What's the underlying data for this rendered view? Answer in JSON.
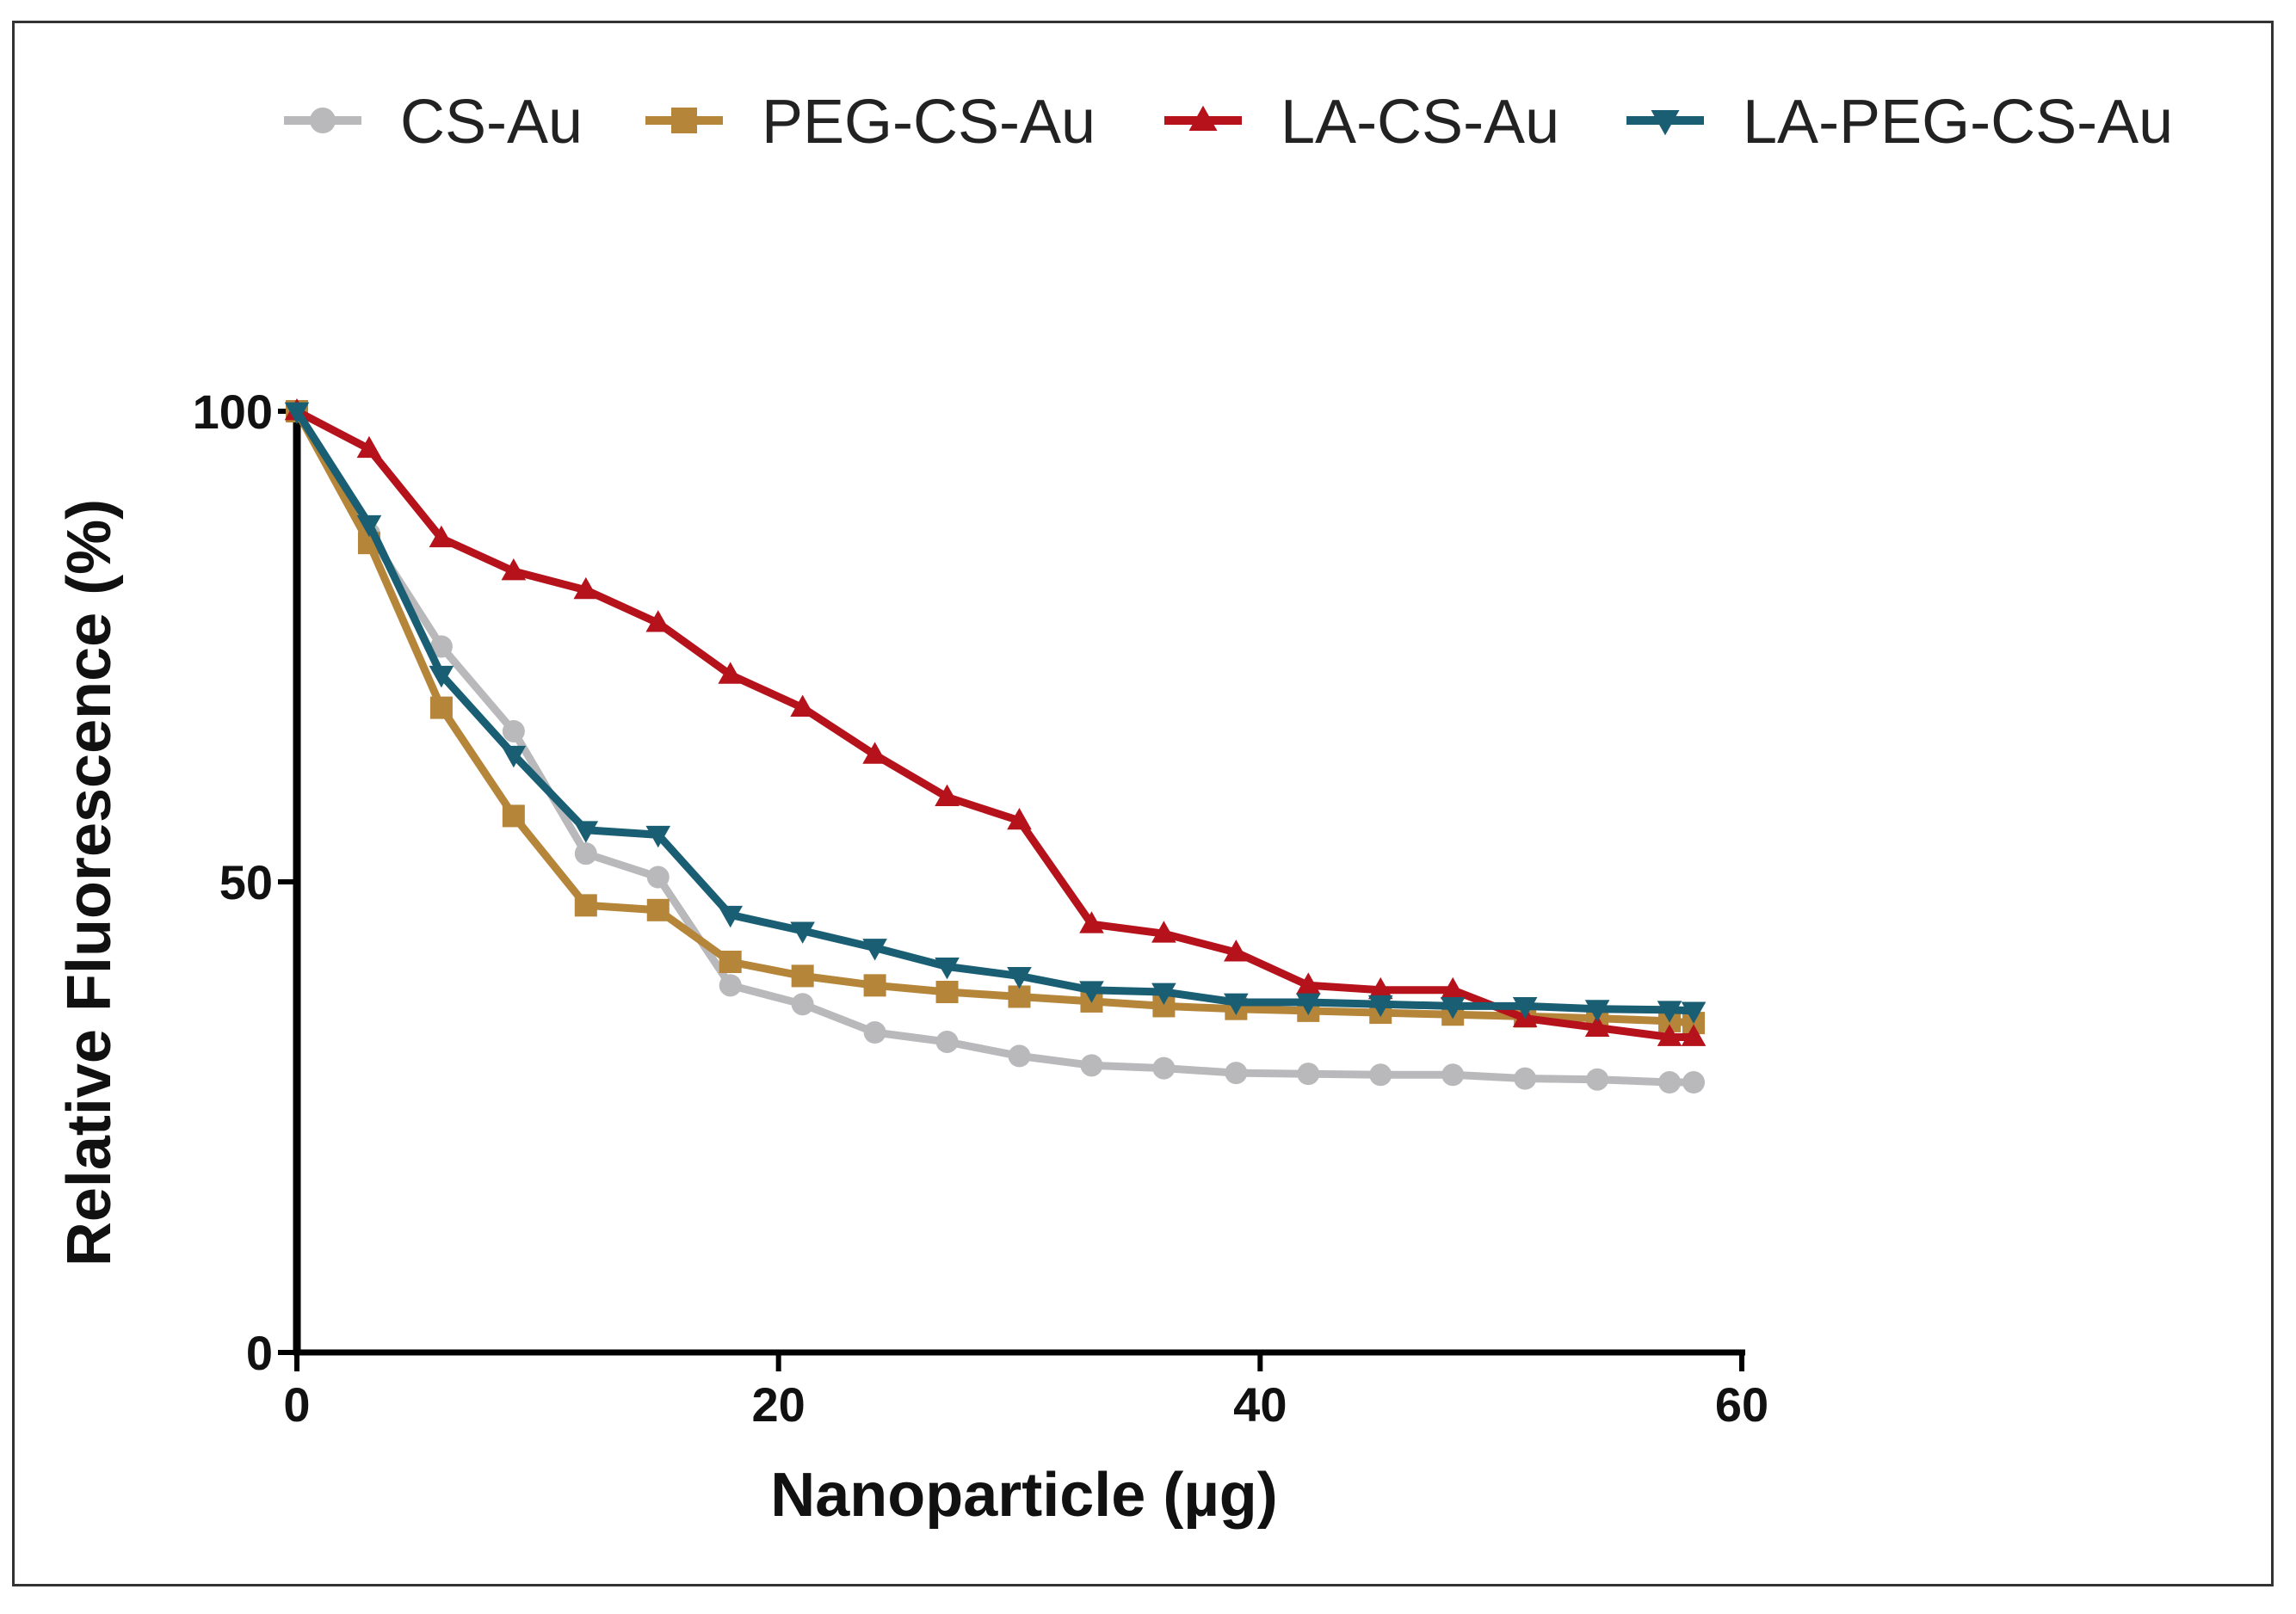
{
  "chart_data": {
    "type": "line",
    "title": "",
    "xlabel": "Nanoparticle (µg)",
    "ylabel": "Relative  Fluorescence  (%)",
    "xlim": [
      0,
      60
    ],
    "ylim": [
      0,
      100
    ],
    "xticks": [
      0,
      20,
      40,
      60
    ],
    "yticks": [
      0,
      50,
      100
    ],
    "xtick_labels": [
      "0",
      "20",
      "40",
      "60"
    ],
    "ytick_labels": [
      "0",
      "50",
      "100"
    ],
    "grid": false,
    "legend_position": "top",
    "series": [
      {
        "name": "CS-Au",
        "color": "#b9b9bc",
        "marker": "circle",
        "x": [
          0,
          3,
          6,
          9,
          12,
          15,
          18,
          21,
          24,
          27,
          30,
          33,
          36,
          39,
          42,
          45,
          48,
          51,
          54,
          57,
          58
        ],
        "values": [
          100,
          87,
          75,
          66,
          53,
          50.5,
          39,
          37,
          34,
          33,
          31.5,
          30.5,
          30.2,
          29.7,
          29.6,
          29.5,
          29.5,
          29.1,
          29,
          28.7,
          28.7
        ]
      },
      {
        "name": "PEG-CS-Au",
        "color": "#b5853a",
        "marker": "square",
        "x": [
          0,
          3,
          6,
          9,
          12,
          15,
          18,
          21,
          24,
          27,
          30,
          33,
          36,
          39,
          42,
          45,
          48,
          51,
          54,
          57,
          58
        ],
        "values": [
          100,
          86,
          68.5,
          57,
          47.5,
          47,
          41.5,
          40,
          39,
          38.3,
          37.8,
          37.3,
          36.8,
          36.5,
          36.3,
          36.1,
          35.9,
          35.7,
          35.5,
          35.2,
          35
        ]
      },
      {
        "name": "LA-CS-Au",
        "color": "#b5121b",
        "marker": "triangle-up",
        "x": [
          0,
          3,
          6,
          9,
          12,
          15,
          18,
          21,
          24,
          27,
          30,
          33,
          36,
          39,
          42,
          45,
          48,
          51,
          54,
          57,
          58
        ],
        "values": [
          100,
          96,
          86.5,
          83,
          81,
          77.5,
          72,
          68.5,
          63.5,
          59,
          56.5,
          45.5,
          44.5,
          42.5,
          39,
          38.5,
          38.5,
          35.5,
          34.5,
          33.5,
          33.5
        ]
      },
      {
        "name": "LA-PEG-CS-Au",
        "color": "#1a5e74",
        "marker": "triangle-down",
        "x": [
          0,
          3,
          6,
          9,
          12,
          15,
          18,
          21,
          24,
          27,
          30,
          33,
          36,
          39,
          42,
          45,
          48,
          51,
          54,
          57,
          58
        ],
        "values": [
          100,
          88,
          72,
          63.5,
          55.5,
          55,
          46.5,
          44.8,
          43,
          41,
          40,
          38.5,
          38.3,
          37.2,
          37.2,
          37,
          36.8,
          36.8,
          36.5,
          36.4,
          36.3
        ]
      }
    ]
  }
}
